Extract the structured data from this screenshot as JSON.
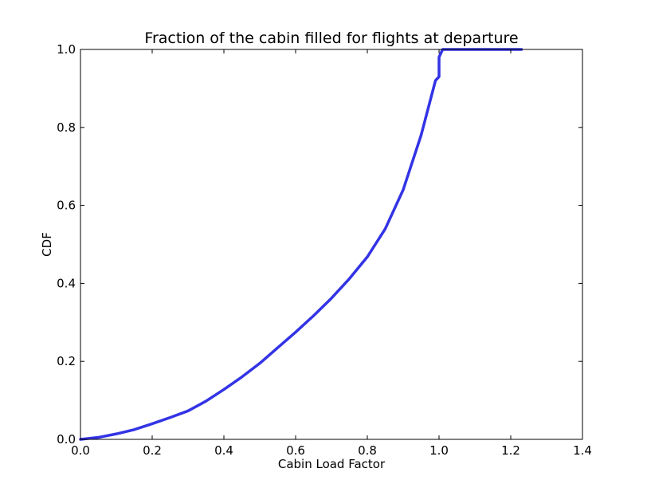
{
  "chart_data": {
    "type": "line",
    "title": "Fraction of the cabin filled for flights at departure",
    "xlabel": "Cabin Load Factor",
    "ylabel": "CDF",
    "xlim": [
      0.0,
      1.4
    ],
    "ylim": [
      0.0,
      1.0
    ],
    "xticks": [
      "0.0",
      "0.2",
      "0.4",
      "0.6",
      "0.8",
      "1.0",
      "1.2",
      "1.4"
    ],
    "yticks": [
      "0.0",
      "0.2",
      "0.4",
      "0.6",
      "0.8",
      "1.0"
    ],
    "grid": false,
    "legend": "none",
    "series": [
      {
        "color": "#3333e6",
        "x": [
          0.0,
          0.05,
          0.1,
          0.15,
          0.2,
          0.25,
          0.3,
          0.35,
          0.4,
          0.45,
          0.5,
          0.55,
          0.6,
          0.65,
          0.7,
          0.75,
          0.8,
          0.85,
          0.9,
          0.95,
          0.99,
          1.0,
          1.0,
          1.01,
          1.02,
          1.1,
          1.23
        ],
        "y": [
          0.0,
          0.005,
          0.014,
          0.025,
          0.04,
          0.056,
          0.073,
          0.098,
          0.128,
          0.16,
          0.195,
          0.235,
          0.275,
          0.317,
          0.362,
          0.412,
          0.468,
          0.54,
          0.64,
          0.78,
          0.92,
          0.93,
          0.98,
          1.0,
          1.0,
          1.0,
          1.0
        ]
      }
    ]
  }
}
